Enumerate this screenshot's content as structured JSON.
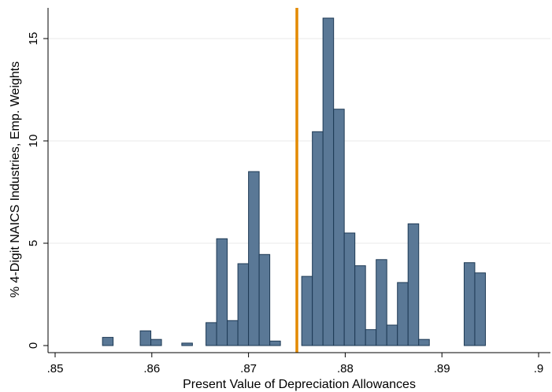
{
  "chart_data": {
    "type": "bar",
    "title": "",
    "xlabel": "Present Value of Depreciation Allowances",
    "ylabel": "% 4-Digit NAICS Industries, Emp. Weights",
    "xlim": [
      0.85,
      0.9
    ],
    "ylim": [
      0,
      16
    ],
    "xticks": [
      0.85,
      0.86,
      0.87,
      0.88,
      0.89,
      0.9
    ],
    "xtick_labels": [
      ".85",
      ".86",
      ".87",
      ".88",
      ".89",
      ".9"
    ],
    "yticks": [
      0,
      5,
      10,
      15
    ],
    "ytick_labels": [
      "0",
      "5",
      "10",
      "15"
    ],
    "grid": true,
    "bin_width": 0.0011,
    "bar_color": "#5a7896",
    "bar_edge_color": "#1e3a55",
    "bins": [
      {
        "x0": 0.8549,
        "value": 0.4
      },
      {
        "x0": 0.8588,
        "value": 0.72
      },
      {
        "x0": 0.8599,
        "value": 0.3
      },
      {
        "x0": 0.8631,
        "value": 0.12
      },
      {
        "x0": 0.8656,
        "value": 1.12
      },
      {
        "x0": 0.8667,
        "value": 5.22
      },
      {
        "x0": 0.8678,
        "value": 1.22
      },
      {
        "x0": 0.8689,
        "value": 4.0
      },
      {
        "x0": 0.87,
        "value": 8.5
      },
      {
        "x0": 0.8711,
        "value": 4.45
      },
      {
        "x0": 0.8722,
        "value": 0.22
      },
      {
        "x0": 0.8755,
        "value": 3.38
      },
      {
        "x0": 0.8766,
        "value": 10.45
      },
      {
        "x0": 0.8777,
        "value": 16.0
      },
      {
        "x0": 0.8788,
        "value": 11.55
      },
      {
        "x0": 0.8799,
        "value": 5.5
      },
      {
        "x0": 0.881,
        "value": 3.9
      },
      {
        "x0": 0.8821,
        "value": 0.78
      },
      {
        "x0": 0.8832,
        "value": 4.2
      },
      {
        "x0": 0.8843,
        "value": 1.0
      },
      {
        "x0": 0.8854,
        "value": 3.08
      },
      {
        "x0": 0.8865,
        "value": 5.95
      },
      {
        "x0": 0.8876,
        "value": 0.3
      },
      {
        "x0": 0.8923,
        "value": 4.05
      },
      {
        "x0": 0.8934,
        "value": 3.55
      }
    ],
    "reference_line": {
      "x": 0.875,
      "color": "#e38a00"
    }
  }
}
